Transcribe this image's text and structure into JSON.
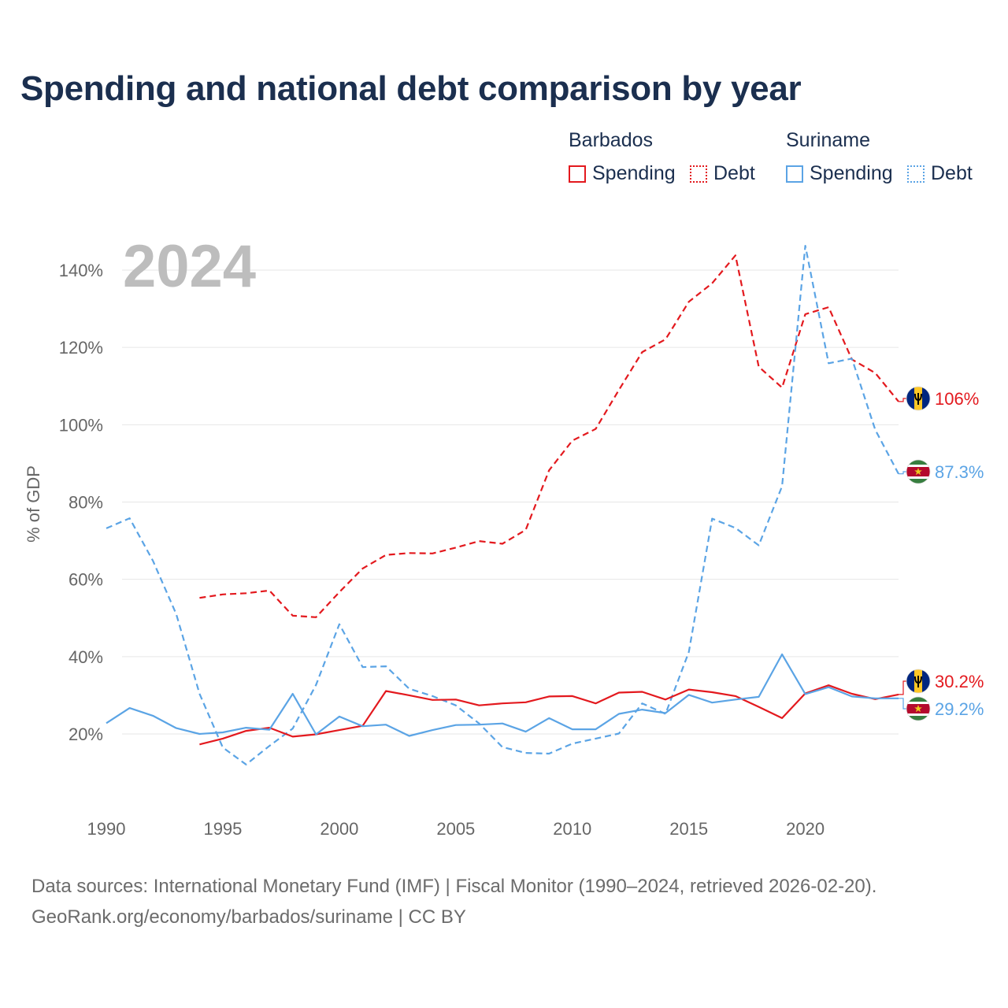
{
  "title": "Spending and national debt comparison by year",
  "legend": {
    "groups": [
      {
        "name": "Barbados",
        "items": [
          "Spending",
          "Debt"
        ]
      },
      {
        "name": "Suriname",
        "items": [
          "Spending",
          "Debt"
        ]
      }
    ]
  },
  "colors": {
    "barbados": "#e3191e",
    "suriname": "#5ba4e5",
    "text": "#1b2f4f",
    "axis": "#666666",
    "year": "#bdbdbd",
    "grid": "#e6e6e6"
  },
  "footer": {
    "line1": "Data sources: International Monetary Fund (IMF) | Fiscal Monitor (1990–2024, retrieved 2026-02-20).",
    "line2": "GeoRank.org/economy/barbados/suriname | CC BY"
  },
  "chart_data": {
    "type": "line",
    "title": "Spending and national debt comparison by year",
    "overlay_year": "2024",
    "ylabel": "% of GDP",
    "xlabel": "",
    "xlim": [
      1990,
      2024
    ],
    "ylim": [
      0,
      150
    ],
    "x_ticks": [
      1990,
      1995,
      2000,
      2005,
      2010,
      2015,
      2020
    ],
    "y_ticks": [
      20,
      40,
      60,
      80,
      100,
      120,
      140
    ],
    "y_tick_labels": [
      "20%",
      "40%",
      "60%",
      "80%",
      "100%",
      "120%",
      "140%"
    ],
    "series": [
      {
        "name": "Barbados Debt",
        "country": "Barbados",
        "measure": "Debt",
        "style": "dashed",
        "color": "#e3191e",
        "x": [
          1994,
          1995,
          1996,
          1997,
          1998,
          1999,
          2000,
          2001,
          2002,
          2003,
          2004,
          2005,
          2006,
          2007,
          2008,
          2009,
          2010,
          2011,
          2012,
          2013,
          2014,
          2015,
          2016,
          2017,
          2018,
          2019,
          2020,
          2021,
          2022,
          2023,
          2024
        ],
        "values": [
          55.2,
          56.1,
          56.4,
          57.1,
          50.6,
          50.2,
          56.7,
          62.8,
          66.3,
          66.8,
          66.7,
          68.2,
          69.9,
          69.2,
          72.8,
          88.2,
          95.9,
          98.9,
          109.0,
          118.8,
          122.1,
          131.8,
          136.6,
          143.8,
          115.0,
          109.6,
          128.6,
          130.4,
          116.9,
          113.4,
          106.0
        ]
      },
      {
        "name": "Suriname Debt",
        "country": "Suriname",
        "measure": "Debt",
        "style": "dashed",
        "color": "#5ba4e5",
        "x": [
          1990,
          1991,
          1992,
          1993,
          1994,
          1995,
          1996,
          1997,
          1998,
          1999,
          2000,
          2001,
          2002,
          2003,
          2004,
          2005,
          2006,
          2007,
          2008,
          2009,
          2010,
          2011,
          2012,
          2013,
          2014,
          2015,
          2016,
          2017,
          2018,
          2019,
          2020,
          2021,
          2022,
          2023,
          2024
        ],
        "values": [
          73.2,
          75.8,
          64.8,
          51.0,
          30.4,
          16.5,
          12.1,
          16.9,
          21.4,
          32.7,
          48.4,
          37.3,
          37.5,
          31.7,
          29.8,
          27.4,
          22.7,
          16.6,
          15.1,
          14.9,
          17.5,
          18.8,
          20.1,
          27.9,
          25.2,
          41.2,
          75.7,
          73.3,
          68.8,
          84.1,
          146.3,
          115.9,
          117.1,
          98.7,
          87.3
        ]
      },
      {
        "name": "Barbados Spending",
        "country": "Barbados",
        "measure": "Spending",
        "style": "solid",
        "color": "#e3191e",
        "x": [
          1994,
          1995,
          1996,
          1997,
          1998,
          1999,
          2000,
          2001,
          2002,
          2003,
          2004,
          2005,
          2006,
          2007,
          2008,
          2009,
          2010,
          2011,
          2012,
          2013,
          2014,
          2015,
          2016,
          2017,
          2018,
          2019,
          2020,
          2021,
          2022,
          2023,
          2024
        ],
        "values": [
          17.3,
          18.8,
          20.8,
          21.6,
          19.3,
          19.9,
          21.0,
          22.1,
          31.1,
          30.0,
          28.8,
          28.9,
          27.4,
          27.9,
          28.2,
          29.7,
          29.8,
          27.9,
          30.7,
          30.9,
          28.9,
          31.5,
          30.8,
          29.8,
          27.0,
          24.1,
          30.5,
          32.6,
          30.4,
          29.0,
          30.2
        ]
      },
      {
        "name": "Suriname Spending",
        "country": "Suriname",
        "measure": "Spending",
        "style": "solid",
        "color": "#5ba4e5",
        "x": [
          1990,
          1991,
          1992,
          1993,
          1994,
          1995,
          1996,
          1997,
          1998,
          1999,
          2000,
          2001,
          2002,
          2003,
          2004,
          2005,
          2006,
          2007,
          2008,
          2009,
          2010,
          2011,
          2012,
          2013,
          2014,
          2015,
          2016,
          2017,
          2018,
          2019,
          2020,
          2021,
          2022,
          2023,
          2024
        ],
        "values": [
          22.8,
          26.7,
          24.7,
          21.5,
          20.0,
          20.4,
          21.6,
          21.1,
          30.4,
          19.9,
          24.5,
          22.0,
          22.4,
          19.5,
          21.0,
          22.3,
          22.4,
          22.7,
          20.6,
          24.1,
          21.2,
          21.2,
          25.2,
          26.3,
          25.4,
          30.1,
          28.1,
          28.9,
          29.6,
          40.6,
          30.3,
          32.1,
          29.7,
          29.2,
          29.2
        ]
      }
    ],
    "end_labels": [
      {
        "series": "Barbados Debt",
        "label": "106%"
      },
      {
        "series": "Suriname Debt",
        "label": "87.3%"
      },
      {
        "series": "Barbados Spending",
        "label": "30.2%"
      },
      {
        "series": "Suriname Spending",
        "label": "29.2%"
      }
    ]
  }
}
